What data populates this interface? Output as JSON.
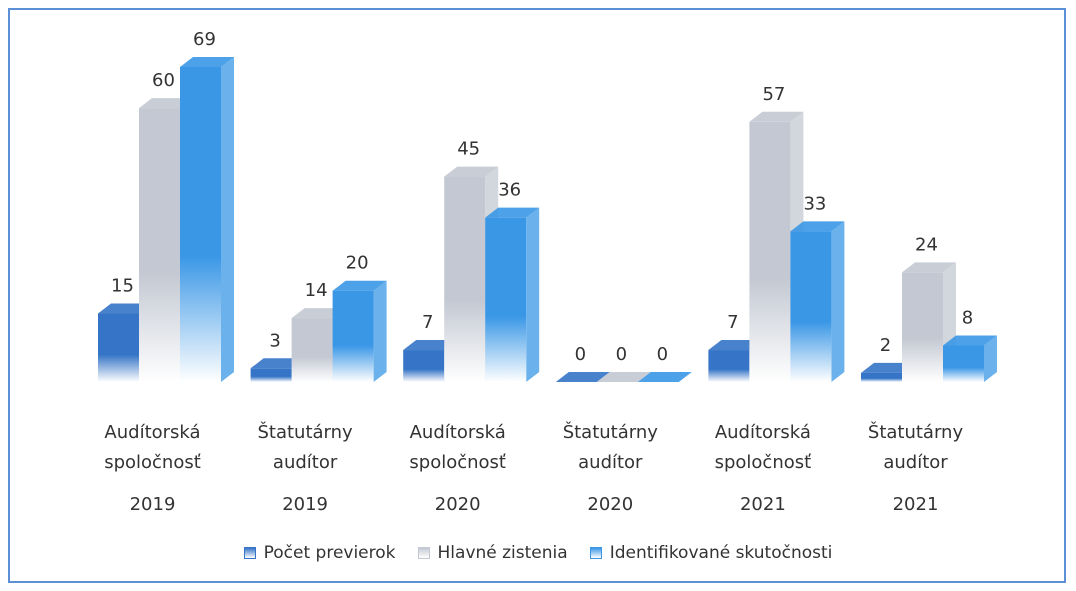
{
  "chart_data": {
    "type": "bar3d",
    "categories": [
      "Audítorská spoločnosť",
      "Štatutárny audítor",
      "Audítorská spoločnosť",
      "Štatutárny audítor",
      "Audítorská spoločnosť",
      "Štatutárny audítor"
    ],
    "category_years": [
      "2019",
      "2019",
      "2020",
      "2020",
      "2021",
      "2021"
    ],
    "series": [
      {
        "name": "Počet previerok",
        "color": "#3574c6",
        "values": [
          15,
          3,
          7,
          0,
          7,
          2
        ]
      },
      {
        "name": "Hlavné zistenia",
        "color": "#c3c8d2",
        "values": [
          60,
          14,
          45,
          0,
          57,
          24
        ]
      },
      {
        "name": "Identifikované skutočnosti",
        "color": "#3a97e6",
        "values": [
          69,
          20,
          36,
          0,
          33,
          8
        ]
      }
    ],
    "legend": "bottom"
  }
}
